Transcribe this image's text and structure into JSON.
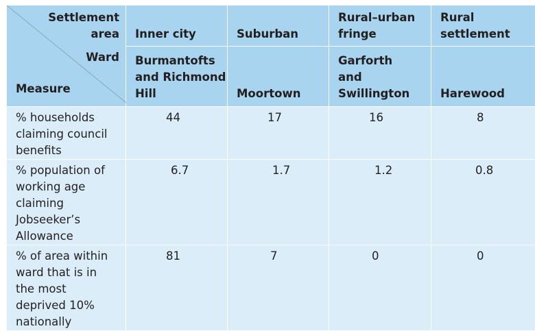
{
  "corner": {
    "settlement_label": "Settlement area",
    "ward_label": "Ward",
    "measure_label": "Measure"
  },
  "settlement_areas": [
    "Inner city",
    "Suburban",
    "Rural–urban fringe",
    "Rural settlement"
  ],
  "wards": [
    "Burmantofts and Richmond Hill",
    "Moortown",
    "Garforth and Swillington",
    "Harewood"
  ],
  "rows": [
    {
      "measure": "% households claiming council benefits",
      "values": [
        "44",
        "17",
        "16",
        "8"
      ]
    },
    {
      "measure": "% population of working age claiming Jobseeker’s Allowance",
      "values": [
        "6.7",
        "1.7",
        "1.2",
        "0.8"
      ]
    },
    {
      "measure": "% of area within ward that is in the most deprived 10% nationally",
      "values": [
        "81",
        "7",
        "0",
        "0"
      ]
    }
  ]
}
